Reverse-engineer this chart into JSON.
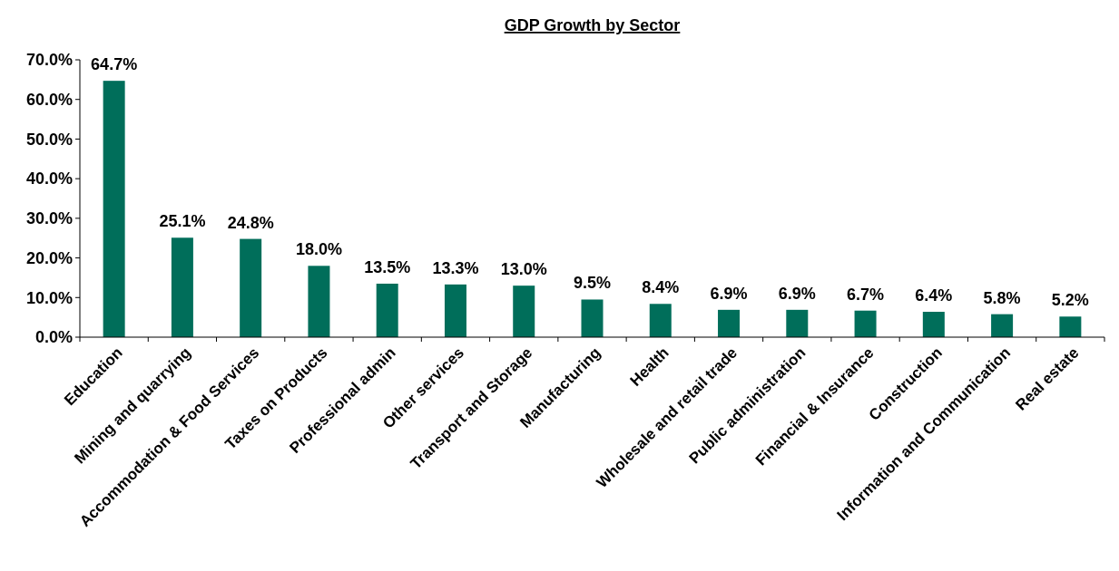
{
  "chart_data": {
    "type": "bar",
    "title": "GDP Growth by Sector",
    "categories": [
      "Education",
      "Mining and quarrying",
      "Accommodation & Food Services",
      "Taxes on Products",
      "Professional admin",
      "Other services",
      "Transport and Storage",
      "Manufacturing",
      "Health",
      "Wholesale and retail trade",
      "Public administration",
      "Financial & Insurance",
      "Construction",
      "Information and Communication",
      "Real estate"
    ],
    "values": [
      64.7,
      25.1,
      24.8,
      18.0,
      13.5,
      13.3,
      13.0,
      9.5,
      8.4,
      6.9,
      6.9,
      6.7,
      6.4,
      5.8,
      5.2
    ],
    "value_labels": [
      "64.7%",
      "25.1%",
      "24.8%",
      "18.0%",
      "13.5%",
      "13.3%",
      "13.0%",
      "9.5%",
      "8.4%",
      "6.9%",
      "6.9%",
      "6.7%",
      "6.4%",
      "5.8%",
      "5.2%"
    ],
    "color": "#006e5a",
    "ylim": [
      0,
      70
    ],
    "yticks": [
      {
        "value": 0,
        "label": "0.0%"
      },
      {
        "value": 10,
        "label": "10.0%"
      },
      {
        "value": 20,
        "label": "20.0%"
      },
      {
        "value": 30,
        "label": "30.0%"
      },
      {
        "value": 40,
        "label": "40.0%"
      },
      {
        "value": 50,
        "label": "50.0%"
      },
      {
        "value": 60,
        "label": "60.0%"
      },
      {
        "value": 70,
        "label": "70.0%"
      }
    ],
    "grid": false
  }
}
